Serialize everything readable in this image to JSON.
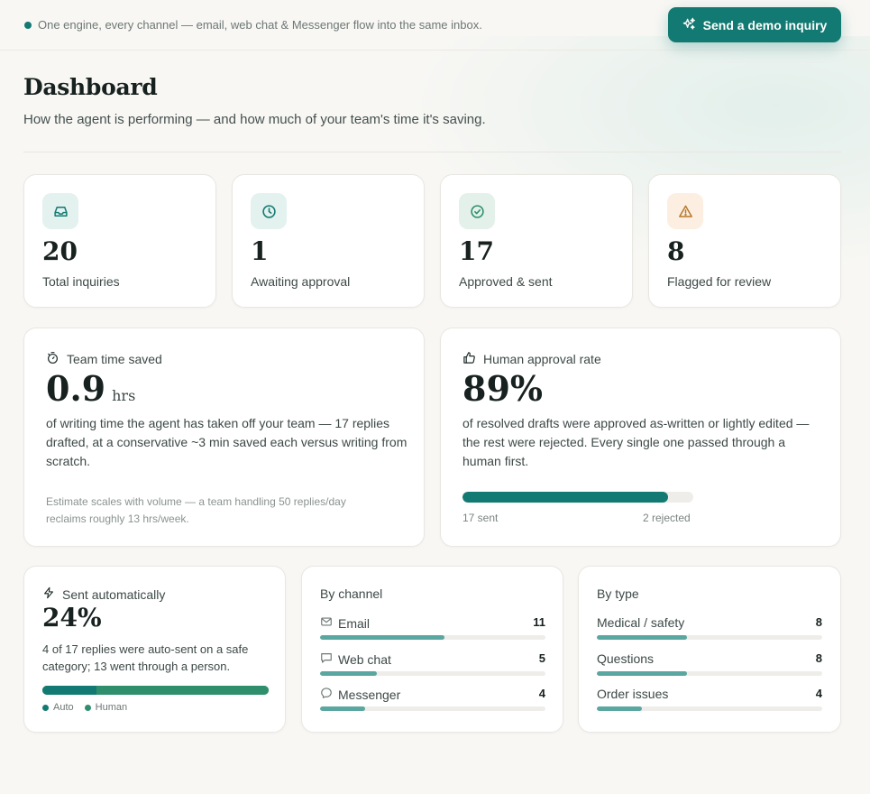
{
  "topbar": {
    "tagline": "One engine, every channel — email, web chat & Messenger flow into the same inbox.",
    "demo_button": "Send a demo inquiry"
  },
  "header": {
    "title": "Dashboard",
    "subtitle": "How the agent is performing — and how much of your team's time it's saving."
  },
  "stats": [
    {
      "value": "20",
      "label": "Total inquiries",
      "icon": "inbox-icon",
      "bg": "#e3f1ef",
      "color": "#127a72"
    },
    {
      "value": "1",
      "label": "Awaiting approval",
      "icon": "clock-icon",
      "bg": "#e3f1ef",
      "color": "#127a72"
    },
    {
      "value": "17",
      "label": "Approved & sent",
      "icon": "check-circle-icon",
      "bg": "#e3f1ea",
      "color": "#2f8f6c"
    },
    {
      "value": "8",
      "label": "Flagged for review",
      "icon": "warning-icon",
      "bg": "#fcefe2",
      "color": "#b8772b"
    }
  ],
  "time_saved": {
    "heading": "Team time saved",
    "value": "0.9",
    "unit": "hrs",
    "description": "of writing time the agent has taken off your team — 17 replies drafted, at a conservative ~3 min saved each versus writing from scratch.",
    "note": "Estimate scales with volume — a team handling 50 replies/day reclaims roughly 13 hrs/week."
  },
  "approval": {
    "heading": "Human approval rate",
    "value": "89%",
    "fraction": 0.89,
    "description": "of resolved drafts were approved as-written or lightly edited — the rest were rejected. Every single one passed through a human first.",
    "left_label": "17 sent",
    "right_label": "2 rejected"
  },
  "auto": {
    "heading": "Sent automatically",
    "value": "24%",
    "fraction": 0.24,
    "description": "4 of 17 replies were auto-sent on a safe category; 13 went through a person.",
    "legend_auto": "Auto",
    "legend_human": "Human",
    "auto_color": "#127a72",
    "human_color": "#2f8f6c"
  },
  "by_channel": {
    "title": "By channel",
    "max": 20,
    "items": [
      {
        "label": "Email",
        "count": 11,
        "icon": "mail-icon"
      },
      {
        "label": "Web chat",
        "count": 5,
        "icon": "chat-icon"
      },
      {
        "label": "Messenger",
        "count": 4,
        "icon": "messenger-icon"
      }
    ]
  },
  "by_type": {
    "title": "By type",
    "max": 20,
    "items": [
      {
        "label": "Medical / safety",
        "count": 8
      },
      {
        "label": "Questions",
        "count": 8
      },
      {
        "label": "Order issues",
        "count": 4
      }
    ]
  }
}
